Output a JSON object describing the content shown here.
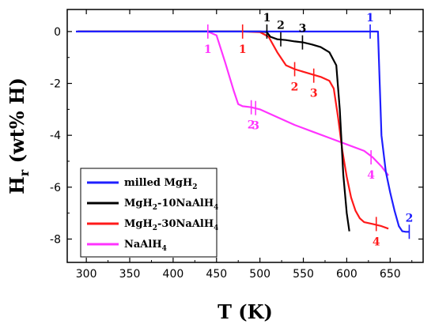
{
  "chart_data": {
    "type": "line",
    "title": "",
    "xlabel": "T (K)",
    "ylabel_main": "H",
    "ylabel_sub": "r",
    "ylabel_rest": " (wt% H)",
    "xlim": [
      278,
      688
    ],
    "ylim": [
      -8.9,
      0.85
    ],
    "xticks": [
      300,
      350,
      400,
      450,
      500,
      550,
      600,
      650
    ],
    "yticks": [
      0,
      -2,
      -4,
      -6,
      -8
    ],
    "grid": false,
    "legend_position": "bottom-left",
    "series": [
      {
        "name": "milled MgH",
        "name_sub": "2",
        "name_rest": "",
        "color": "#1f1fff",
        "x": [
          288,
          400,
          500,
          600,
          636,
          638,
          640,
          645,
          650,
          655,
          660,
          664,
          668,
          672
        ],
        "y": [
          0,
          0,
          0,
          0,
          0,
          -2.0,
          -4.0,
          -5.4,
          -6.2,
          -6.9,
          -7.5,
          -7.7,
          -7.72,
          -7.72
        ]
      },
      {
        "name": "MgH",
        "name_sub": "2",
        "name_rest": "-10NaAlH",
        "name_sub2": "4",
        "color": "#000000",
        "x": [
          290,
          400,
          500,
          508,
          512,
          520,
          530,
          540,
          550,
          560,
          570,
          580,
          588,
          592,
          596,
          600,
          603
        ],
        "y": [
          0,
          0,
          0,
          -0.02,
          -0.2,
          -0.3,
          -0.33,
          -0.38,
          -0.42,
          -0.5,
          -0.6,
          -0.8,
          -1.3,
          -3.0,
          -5.5,
          -7.0,
          -7.7
        ]
      },
      {
        "name": "MgH",
        "name_sub": "2",
        "name_rest": "-30NaAlH",
        "name_sub2": "4",
        "color": "#ff1a1a",
        "x": [
          290,
          400,
          480,
          500,
          510,
          520,
          530,
          540,
          550,
          560,
          570,
          580,
          585,
          590,
          595,
          600,
          605,
          610,
          615,
          620,
          630,
          640,
          648
        ],
        "y": [
          0,
          0,
          0,
          -0.02,
          -0.2,
          -0.8,
          -1.3,
          -1.45,
          -1.55,
          -1.65,
          -1.75,
          -1.9,
          -2.2,
          -3.3,
          -4.6,
          -5.6,
          -6.4,
          -6.9,
          -7.2,
          -7.35,
          -7.42,
          -7.5,
          -7.6
        ]
      },
      {
        "name": "NaAlH",
        "name_sub": "4",
        "name_rest": "",
        "color": "#ff33ff",
        "x": [
          290,
          400,
          440,
          450,
          460,
          470,
          475,
          480,
          490,
          500,
          520,
          540,
          560,
          580,
          600,
          620,
          630,
          640,
          648
        ],
        "y": [
          0,
          0,
          0,
          -0.15,
          -1.2,
          -2.3,
          -2.8,
          -2.88,
          -2.92,
          -3.0,
          -3.3,
          -3.6,
          -3.85,
          -4.1,
          -4.35,
          -4.6,
          -4.85,
          -5.2,
          -5.55
        ]
      }
    ],
    "markers": [
      {
        "series": 0,
        "label": "1",
        "x": 627,
        "y": 0,
        "label_side": "above"
      },
      {
        "series": 0,
        "label": "2",
        "x": 672,
        "y": -7.72,
        "label_side": "above"
      },
      {
        "series": 1,
        "label": "1",
        "x": 508,
        "y": 0,
        "label_side": "above"
      },
      {
        "series": 1,
        "label": "2",
        "x": 524,
        "y": -0.3,
        "label_side": "above"
      },
      {
        "series": 1,
        "label": "3",
        "x": 549,
        "y": -0.42,
        "label_side": "above"
      },
      {
        "series": 2,
        "label": "1",
        "x": 480,
        "y": 0,
        "label_side": "below"
      },
      {
        "series": 2,
        "label": "2",
        "x": 540,
        "y": -1.45,
        "label_side": "below"
      },
      {
        "series": 2,
        "label": "3",
        "x": 562,
        "y": -1.7,
        "label_side": "below"
      },
      {
        "series": 2,
        "label": "4",
        "x": 634,
        "y": -7.42,
        "label_side": "below"
      },
      {
        "series": 3,
        "label": "1",
        "x": 440,
        "y": 0,
        "label_side": "below"
      },
      {
        "series": 3,
        "label": "2",
        "x": 490,
        "y": -2.92,
        "label_side": "below"
      },
      {
        "series": 3,
        "label": "3",
        "x": 495,
        "y": -2.95,
        "label_side": "below"
      },
      {
        "series": 3,
        "label": "4",
        "x": 628,
        "y": -4.85,
        "label_side": "below"
      }
    ]
  }
}
